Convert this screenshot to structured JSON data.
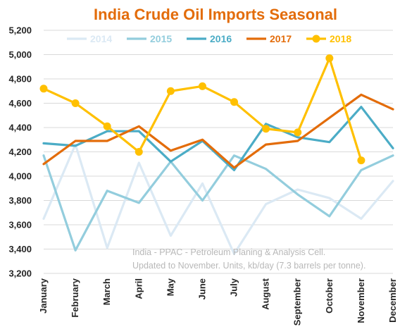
{
  "chart_data": {
    "type": "line",
    "title": "India Crude Oil Imports Seasonal",
    "title_color": "#e36c0a",
    "xlabel": "",
    "ylabel": "",
    "ylim": [
      3200,
      5200
    ],
    "y_ticks": [
      "3,200",
      "3,400",
      "3,600",
      "3,800",
      "4,000",
      "4,200",
      "4,400",
      "4,600",
      "4,800",
      "5,000",
      "5,200"
    ],
    "grid": true,
    "legend_position": "top",
    "categories": [
      "January",
      "February",
      "March",
      "April",
      "May",
      "June",
      "July",
      "August",
      "September",
      "October",
      "November",
      "December"
    ],
    "series": [
      {
        "name": "2014",
        "color": "#dbe9f4",
        "markers": false,
        "values": [
          3650,
          4260,
          3410,
          4110,
          3510,
          3940,
          3360,
          3770,
          3890,
          3820,
          3650,
          3960
        ]
      },
      {
        "name": "2015",
        "color": "#93cddd",
        "markers": false,
        "values": [
          4170,
          3390,
          3880,
          3780,
          4120,
          3800,
          4170,
          4060,
          3850,
          3670,
          4050,
          4170
        ]
      },
      {
        "name": "2016",
        "color": "#4bacc6",
        "markers": false,
        "values": [
          4270,
          4250,
          4370,
          4370,
          4120,
          4290,
          4050,
          4430,
          4320,
          4280,
          4570,
          4230
        ]
      },
      {
        "name": "2017",
        "color": "#e36c0a",
        "markers": false,
        "values": [
          4100,
          4290,
          4290,
          4410,
          4210,
          4300,
          4070,
          4260,
          4290,
          4480,
          4670,
          4550
        ]
      },
      {
        "name": "2018",
        "color": "#ffc000",
        "markers": true,
        "values": [
          4720,
          4600,
          4410,
          4200,
          4700,
          4740,
          4610,
          4390,
          4360,
          4970,
          4130,
          null
        ]
      }
    ],
    "annotation": [
      "India - PPAC - Petroleum Planing & Analysis Cell.",
      "Updated to November. Units, kb/day (7.3 barrels per tonne)."
    ]
  }
}
